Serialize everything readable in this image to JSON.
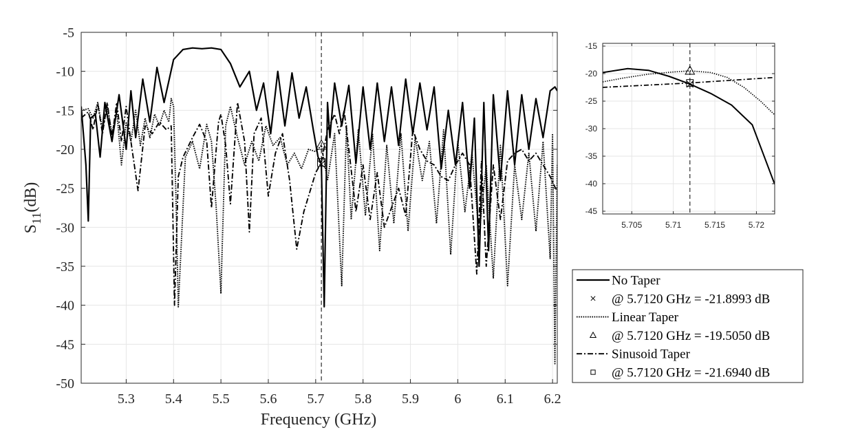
{
  "chart_data": [
    {
      "type": "line",
      "xlabel": "Frequency (GHz)",
      "ylabel": {
        "main": "S",
        "sub": "11",
        "unit": "(dB)"
      },
      "xlim": [
        5.205,
        6.21
      ],
      "ylim": [
        -50,
        -5
      ],
      "xticks": [
        5.3,
        5.4,
        5.5,
        5.6,
        5.7,
        5.8,
        5.9,
        6,
        6.1,
        6.2
      ],
      "xtick_labels": [
        "5.3",
        "5.4",
        "5.5",
        "5.6",
        "5.7",
        "5.8",
        "5.9",
        "6",
        "6.1",
        "6.2"
      ],
      "yticks": [
        -50,
        -45,
        -40,
        -35,
        -30,
        -25,
        -20,
        -15,
        -10,
        -5
      ],
      "ytick_labels": [
        "-50",
        "-45",
        "-40",
        "-35",
        "-30",
        "-25",
        "-20",
        "-15",
        "-10",
        "-5"
      ],
      "grid": true,
      "vline": 5.712,
      "series": [
        {
          "name": "No Taper",
          "style": "solid",
          "x": [
            5.205,
            5.215,
            5.22,
            5.225,
            5.235,
            5.245,
            5.255,
            5.27,
            5.285,
            5.3,
            5.31,
            5.32,
            5.335,
            5.35,
            5.365,
            5.38,
            5.4,
            5.42,
            5.44,
            5.46,
            5.48,
            5.5,
            5.52,
            5.54,
            5.56,
            5.575,
            5.59,
            5.605,
            5.62,
            5.635,
            5.65,
            5.665,
            5.68,
            5.695,
            5.705,
            5.712,
            5.718,
            5.725,
            5.73,
            5.74,
            5.755,
            5.77,
            5.785,
            5.8,
            5.815,
            5.83,
            5.845,
            5.86,
            5.875,
            5.89,
            5.905,
            5.92,
            5.935,
            5.95,
            5.965,
            5.98,
            5.995,
            6.01,
            6.025,
            6.035,
            6.045,
            6.055,
            6.065,
            6.075,
            6.09,
            6.105,
            6.12,
            6.135,
            6.15,
            6.165,
            6.18,
            6.195,
            6.205,
            6.21
          ],
          "y": [
            -14.5,
            -22.0,
            -29.2,
            -16.0,
            -15.5,
            -21.0,
            -14.0,
            -19.0,
            -13.0,
            -20.0,
            -12.5,
            -18.5,
            -11.0,
            -16.5,
            -9.5,
            -14.0,
            -8.5,
            -7.2,
            -7.0,
            -7.1,
            -7.0,
            -7.2,
            -9.0,
            -12.0,
            -10.0,
            -15.0,
            -11.5,
            -18.0,
            -10.0,
            -17.0,
            -10.2,
            -16.0,
            -12.0,
            -17.5,
            -21.0,
            -21.9,
            -40.2,
            -14.0,
            -18.5,
            -11.5,
            -17.0,
            -11.8,
            -21.8,
            -12.0,
            -20.0,
            -11.5,
            -19.0,
            -12.0,
            -19.5,
            -11.0,
            -18.0,
            -11.5,
            -17.5,
            -12.0,
            -22.5,
            -15.0,
            -22.0,
            -14.0,
            -25.0,
            -16.0,
            -35.0,
            -14.0,
            -33.0,
            -13.0,
            -24.0,
            -12.5,
            -22.0,
            -13.0,
            -20.0,
            -13.5,
            -18.5,
            -12.5,
            -12.0,
            -12.5
          ]
        },
        {
          "name": "Linear Taper",
          "style": "dotted",
          "x": [
            5.205,
            5.22,
            5.23,
            5.24,
            5.25,
            5.26,
            5.27,
            5.28,
            5.29,
            5.3,
            5.31,
            5.32,
            5.33,
            5.34,
            5.35,
            5.36,
            5.37,
            5.38,
            5.39,
            5.395,
            5.4,
            5.405,
            5.41,
            5.425,
            5.44,
            5.455,
            5.47,
            5.48,
            5.49,
            5.5,
            5.51,
            5.52,
            5.535,
            5.55,
            5.565,
            5.58,
            5.595,
            5.61,
            5.625,
            5.64,
            5.655,
            5.67,
            5.685,
            5.7,
            5.712,
            5.725,
            5.74,
            5.755,
            5.765,
            5.775,
            5.79,
            5.805,
            5.82,
            5.835,
            5.85,
            5.865,
            5.88,
            5.895,
            5.91,
            5.925,
            5.94,
            5.955,
            5.97,
            5.985,
            6.0,
            6.015,
            6.03,
            6.045,
            6.06,
            6.075,
            6.09,
            6.105,
            6.12,
            6.135,
            6.15,
            6.165,
            6.18,
            6.195,
            6.2,
            6.205,
            6.21
          ],
          "y": [
            -15.0,
            -14.8,
            -16.0,
            -14.0,
            -17.5,
            -14.5,
            -18.0,
            -15.0,
            -22.0,
            -16.5,
            -19.0,
            -15.0,
            -19.5,
            -16.0,
            -18.5,
            -15.5,
            -17.0,
            -15.0,
            -16.5,
            -13.5,
            -14.5,
            -26.0,
            -40.2,
            -21.0,
            -19.0,
            -22.5,
            -16.8,
            -19.0,
            -27.5,
            -38.5,
            -17.0,
            -14.5,
            -18.5,
            -22.0,
            -19.0,
            -21.5,
            -17.0,
            -19.5,
            -18.5,
            -22.0,
            -20.5,
            -22.5,
            -20.0,
            -20.3,
            -19.5,
            -24.0,
            -18.0,
            -37.5,
            -17.0,
            -29.0,
            -17.5,
            -28.5,
            -18.0,
            -33.0,
            -19.5,
            -29.5,
            -18.0,
            -30.5,
            -18.5,
            -24.0,
            -19.0,
            -29.5,
            -17.5,
            -33.5,
            -19.0,
            -28.0,
            -20.5,
            -31.0,
            -22.0,
            -36.5,
            -19.5,
            -37.5,
            -22.0,
            -29.0,
            -20.5,
            -30.5,
            -19.0,
            -34.0,
            -18.0,
            -47.5,
            -22.0
          ]
        },
        {
          "name": "Sinusoid Taper",
          "style": "dashdot",
          "x": [
            5.205,
            5.22,
            5.23,
            5.24,
            5.25,
            5.26,
            5.27,
            5.28,
            5.29,
            5.3,
            5.31,
            5.325,
            5.34,
            5.355,
            5.37,
            5.385,
            5.395,
            5.402,
            5.41,
            5.42,
            5.44,
            5.455,
            5.47,
            5.48,
            5.49,
            5.495,
            5.5,
            5.51,
            5.52,
            5.535,
            5.55,
            5.56,
            5.57,
            5.585,
            5.6,
            5.615,
            5.63,
            5.645,
            5.66,
            5.675,
            5.69,
            5.7,
            5.712,
            5.725,
            5.74,
            5.75,
            5.76,
            5.77,
            5.785,
            5.8,
            5.815,
            5.83,
            5.845,
            5.86,
            5.875,
            5.89,
            5.905,
            5.92,
            5.935,
            5.95,
            5.965,
            5.98,
            5.995,
            6.01,
            6.025,
            6.04,
            6.05,
            6.06,
            6.075,
            6.09,
            6.105,
            6.12,
            6.135,
            6.15,
            6.165,
            6.18,
            6.195,
            6.21
          ],
          "y": [
            -16.0,
            -15.2,
            -17.5,
            -14.2,
            -18.0,
            -14.0,
            -18.5,
            -14.0,
            -19.0,
            -14.5,
            -19.0,
            -25.3,
            -17.0,
            -18.0,
            -16.5,
            -17.5,
            -17.0,
            -40.0,
            -23.5,
            -21.0,
            -18.5,
            -16.8,
            -19.0,
            -27.5,
            -20.0,
            -16.5,
            -15.5,
            -19.5,
            -27.0,
            -14.0,
            -19.0,
            -30.6,
            -18.0,
            -16.0,
            -26.0,
            -20.5,
            -18.0,
            -24.0,
            -32.8,
            -28.0,
            -25.0,
            -23.0,
            -21.7,
            -17.5,
            -15.5,
            -18.0,
            -15.0,
            -20.0,
            -28.0,
            -22.0,
            -29.0,
            -23.0,
            -30.0,
            -27.5,
            -25.0,
            -28.5,
            -17.5,
            -20.0,
            -21.5,
            -22.0,
            -23.5,
            -24.0,
            -22.0,
            -20.5,
            -22.0,
            -36.0,
            -21.5,
            -35.0,
            -22.0,
            -29.0,
            -21.5,
            -20.5,
            -20.0,
            -21.5,
            -20.5,
            -22.0,
            -23.5,
            -25.5
          ]
        }
      ],
      "markers": [
        {
          "series": "No Taper",
          "symbol": "x",
          "x": 5.712,
          "y": -21.8993
        },
        {
          "series": "Linear Taper",
          "symbol": "triangle",
          "x": 5.712,
          "y": -19.505
        },
        {
          "series": "Sinusoid Taper",
          "symbol": "square",
          "x": 5.712,
          "y": -21.694
        }
      ]
    },
    {
      "type": "line",
      "xlim": [
        5.7015,
        5.7222
      ],
      "ylim": [
        -45.5,
        -14.5
      ],
      "xticks": [
        5.705,
        5.71,
        5.715,
        5.72
      ],
      "xtick_labels": [
        "5.705",
        "5.71",
        "5.715",
        "5.72"
      ],
      "yticks": [
        -45,
        -40,
        -35,
        -30,
        -25,
        -20,
        -15
      ],
      "ytick_labels": [
        "-45",
        "-40",
        "-35",
        "-30",
        "-25",
        "-20",
        "-15"
      ],
      "grid": true,
      "vline": 5.712,
      "series": [
        {
          "name": "No Taper",
          "style": "solid",
          "x": [
            5.7015,
            5.7045,
            5.707,
            5.7095,
            5.712,
            5.7145,
            5.717,
            5.7195,
            5.7222
          ],
          "y": [
            -19.8,
            -19.1,
            -19.4,
            -20.5,
            -21.9,
            -23.6,
            -25.7,
            -29.3,
            -40.1
          ]
        },
        {
          "name": "Linear Taper",
          "style": "dotted",
          "x": [
            5.7015,
            5.704,
            5.707,
            5.71,
            5.712,
            5.7145,
            5.7165,
            5.7185,
            5.7205,
            5.7222
          ],
          "y": [
            -21.5,
            -20.8,
            -20.1,
            -19.7,
            -19.5,
            -19.8,
            -20.7,
            -22.5,
            -25.0,
            -27.5
          ]
        },
        {
          "name": "Sinusoid Taper",
          "style": "dashdot",
          "x": [
            5.7015,
            5.712,
            5.7222
          ],
          "y": [
            -22.5,
            -21.7,
            -20.7
          ]
        }
      ],
      "markers": [
        {
          "series": "No Taper",
          "symbol": "x",
          "x": 5.712,
          "y": -21.8993
        },
        {
          "series": "Linear Taper",
          "symbol": "triangle",
          "x": 5.712,
          "y": -19.505
        },
        {
          "series": "Sinusoid Taper",
          "symbol": "square",
          "x": 5.712,
          "y": -21.694
        }
      ]
    }
  ],
  "legend": {
    "placement": "bottom-right",
    "entries": [
      {
        "label": "No Taper",
        "kind": "line",
        "style": "solid"
      },
      {
        "label": "@ 5.7120 GHz = -21.8993 dB",
        "kind": "marker",
        "symbol": "x"
      },
      {
        "label": "Linear Taper",
        "kind": "line",
        "style": "dotted"
      },
      {
        "label": "@ 5.7120 GHz = -19.5050 dB",
        "kind": "marker",
        "symbol": "triangle"
      },
      {
        "label": "Sinusoid Taper",
        "kind": "line",
        "style": "dashdot"
      },
      {
        "label": "@ 5.7120 GHz = -21.6940 dB",
        "kind": "marker",
        "symbol": "square"
      }
    ]
  },
  "colors": {
    "line": "#000000",
    "grid": "#e6e6e6",
    "axis": "#262626",
    "tick_text": "#262626",
    "background": "#ffffff"
  }
}
